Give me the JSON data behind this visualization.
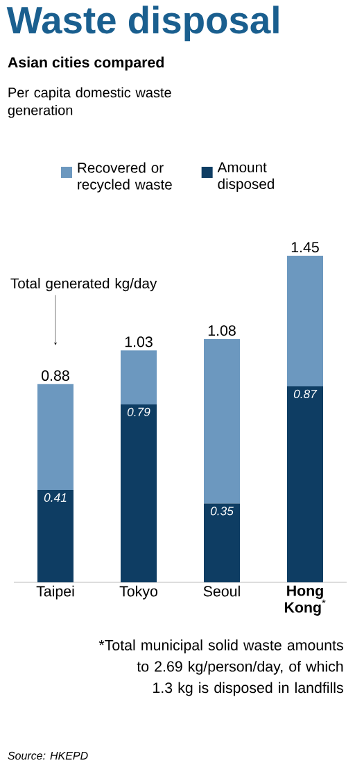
{
  "chart_data": {
    "type": "bar",
    "title": "Waste disposal",
    "subtitle": "Asian cities compared",
    "categories": [
      "Taipei",
      "Tokyo",
      "Seoul",
      "**Hong Kong**$^{*}$"
    ],
    "stacked": true,
    "legend": "top",
    "series": [
      {
        "name": "Amount disposed",
        "color": "#0e3d63",
        "values": [
          0.41,
          0.79,
          0.35,
          0.87
        ],
        "value_labels": [
          "0.41",
          "0.79",
          "0.35",
          "0.87"
        ]
      },
      {
        "name": "Recovered or recycled waste",
        "color": "#6c98bf",
        "values": [
          0.47,
          0.24,
          0.73,
          0.58
        ]
      }
    ],
    "totals": [
      "0.88",
      "1.03",
      "1.08",
      "1.45"
    ],
    "annotations": [
      "Per capita domestic waste generation",
      "Total generated kg/day",
      "*Total municipal solid waste amounts to 2.69 kg/person/day, of which 1.3 kg is disposed in landfills",
      "Source: HKEPD"
    ]
  }
}
